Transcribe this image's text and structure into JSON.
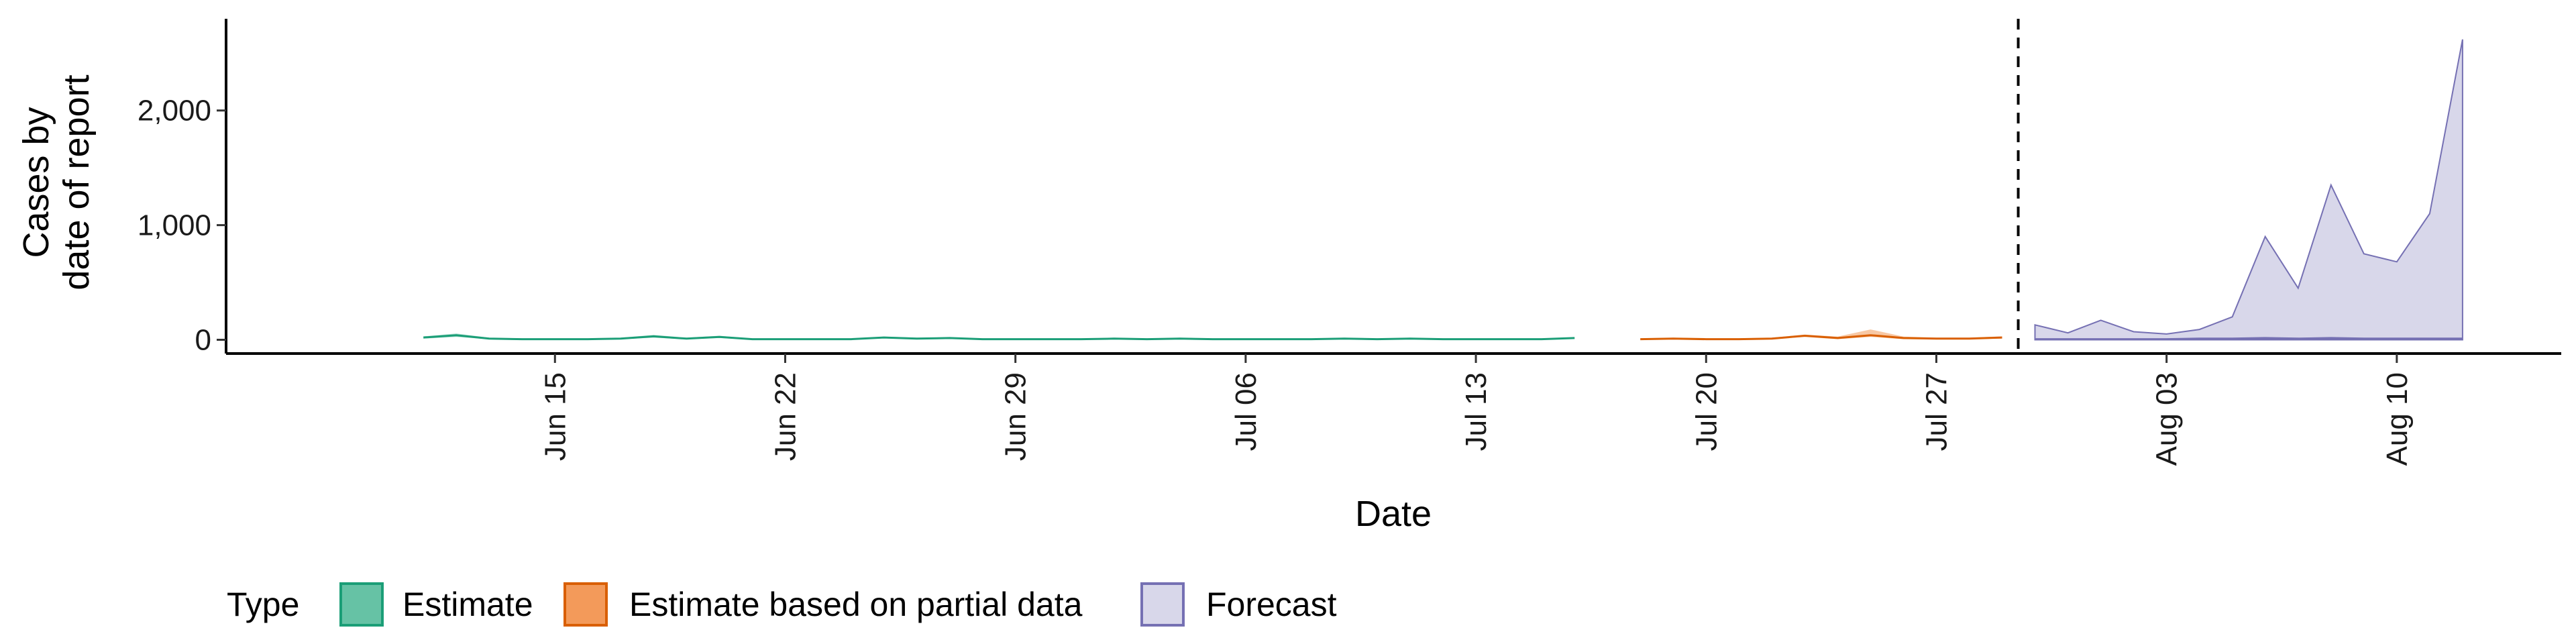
{
  "chart_data": {
    "type": "area",
    "xlabel": "Date",
    "ylabel_lines": [
      "Cases by",
      "date of report"
    ],
    "x_range": [
      "2020-06-05",
      "2020-08-15"
    ],
    "ylim": [
      -120,
      2800
    ],
    "y_ticks": [
      {
        "value": 0,
        "label": "0"
      },
      {
        "value": 1000,
        "label": "1,000"
      },
      {
        "value": 2000,
        "label": "2,000"
      }
    ],
    "x_ticks": [
      {
        "date": "2020-06-15",
        "label": "Jun 15"
      },
      {
        "date": "2020-06-22",
        "label": "Jun 22"
      },
      {
        "date": "2020-06-29",
        "label": "Jun 29"
      },
      {
        "date": "2020-07-06",
        "label": "Jul 06"
      },
      {
        "date": "2020-07-13",
        "label": "Jul 13"
      },
      {
        "date": "2020-07-20",
        "label": "Jul 20"
      },
      {
        "date": "2020-07-27",
        "label": "Jul 27"
      },
      {
        "date": "2020-08-03",
        "label": "Aug 03"
      },
      {
        "date": "2020-08-10",
        "label": "Aug 10"
      }
    ],
    "forecast_start": "2020-07-30",
    "grid": false,
    "legend_position": "bottom-left",
    "legend_title": "Type",
    "series": [
      {
        "name": "Estimate",
        "color": "#1B9E77",
        "fill": "#66C2A5",
        "dates": [
          "2020-06-11",
          "2020-06-12",
          "2020-06-13",
          "2020-06-14",
          "2020-06-15",
          "2020-06-16",
          "2020-06-17",
          "2020-06-18",
          "2020-06-19",
          "2020-06-20",
          "2020-06-21",
          "2020-06-22",
          "2020-06-23",
          "2020-06-24",
          "2020-06-25",
          "2020-06-26",
          "2020-06-27",
          "2020-06-28",
          "2020-06-29",
          "2020-06-30",
          "2020-07-01",
          "2020-07-02",
          "2020-07-03",
          "2020-07-04",
          "2020-07-05",
          "2020-07-06",
          "2020-07-07",
          "2020-07-08",
          "2020-07-09",
          "2020-07-10",
          "2020-07-11",
          "2020-07-12",
          "2020-07-13",
          "2020-07-14",
          "2020-07-15",
          "2020-07-16"
        ],
        "median": [
          20,
          40,
          10,
          5,
          5,
          5,
          10,
          30,
          10,
          25,
          5,
          5,
          5,
          5,
          20,
          10,
          15,
          5,
          5,
          5,
          5,
          10,
          5,
          10,
          5,
          5,
          5,
          5,
          10,
          5,
          10,
          5,
          5,
          5,
          5,
          15
        ],
        "lower": [
          10,
          25,
          5,
          2,
          2,
          2,
          5,
          18,
          5,
          15,
          2,
          2,
          2,
          2,
          12,
          5,
          8,
          2,
          2,
          2,
          2,
          5,
          2,
          5,
          2,
          2,
          2,
          2,
          5,
          2,
          5,
          2,
          2,
          2,
          2,
          8
        ],
        "upper": [
          30,
          55,
          18,
          10,
          10,
          10,
          18,
          42,
          18,
          35,
          10,
          10,
          10,
          10,
          28,
          18,
          22,
          10,
          10,
          10,
          10,
          18,
          10,
          18,
          10,
          10,
          10,
          10,
          18,
          10,
          18,
          10,
          10,
          10,
          10,
          22
        ]
      },
      {
        "name": "Estimate based on partial data",
        "color": "#D95F02",
        "fill": "#F39A5A",
        "dates": [
          "2020-07-18",
          "2020-07-19",
          "2020-07-20",
          "2020-07-21",
          "2020-07-22",
          "2020-07-23",
          "2020-07-24",
          "2020-07-25",
          "2020-07-26",
          "2020-07-27",
          "2020-07-28",
          "2020-07-29"
        ],
        "median": [
          5,
          10,
          5,
          5,
          10,
          35,
          15,
          40,
          15,
          10,
          10,
          20
        ],
        "lower": [
          2,
          5,
          2,
          2,
          5,
          25,
          5,
          25,
          5,
          5,
          5,
          10
        ],
        "upper": [
          12,
          18,
          12,
          12,
          18,
          45,
          28,
          90,
          28,
          18,
          18,
          30
        ]
      },
      {
        "name": "Forecast",
        "color": "#7570B3",
        "fill": "#D8D7EA",
        "dates": [
          "2020-07-30",
          "2020-07-31",
          "2020-08-01",
          "2020-08-02",
          "2020-08-03",
          "2020-08-04",
          "2020-08-05",
          "2020-08-06",
          "2020-08-07",
          "2020-08-08",
          "2020-08-09",
          "2020-08-10",
          "2020-08-11",
          "2020-08-12"
        ],
        "median": [
          5,
          5,
          5,
          5,
          5,
          10,
          10,
          15,
          10,
          15,
          10,
          10,
          10,
          10
        ],
        "lower": [
          0,
          0,
          0,
          0,
          0,
          0,
          0,
          0,
          0,
          0,
          0,
          0,
          0,
          0
        ],
        "upper": [
          130,
          60,
          170,
          70,
          50,
          90,
          200,
          900,
          450,
          1350,
          750,
          680,
          1100,
          2620
        ]
      }
    ]
  }
}
